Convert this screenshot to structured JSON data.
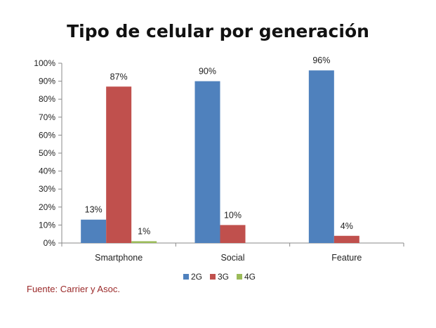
{
  "chart_data": {
    "type": "bar",
    "title": "Tipo de celular por generación",
    "categories": [
      "Smartphone",
      "Social",
      "Feature"
    ],
    "series": [
      {
        "name": "2G",
        "color": "#4f81bd",
        "values": [
          13,
          90,
          96
        ],
        "labels": [
          "13%",
          "90%",
          "96%"
        ]
      },
      {
        "name": "3G",
        "color": "#c0504d",
        "values": [
          87,
          10,
          4
        ],
        "labels": [
          "87%",
          "10%",
          "4%"
        ]
      },
      {
        "name": "4G",
        "color": "#9bbb59",
        "values": [
          1,
          0,
          0
        ],
        "labels": [
          "1%",
          "",
          ""
        ]
      }
    ],
    "ylim": [
      0,
      100
    ],
    "yticks": [
      "0%",
      "10%",
      "20%",
      "30%",
      "40%",
      "50%",
      "60%",
      "70%",
      "80%",
      "90%",
      "100%"
    ],
    "grid": false,
    "legend": "bottom"
  },
  "source": "Fuente: Carrier y Asoc."
}
